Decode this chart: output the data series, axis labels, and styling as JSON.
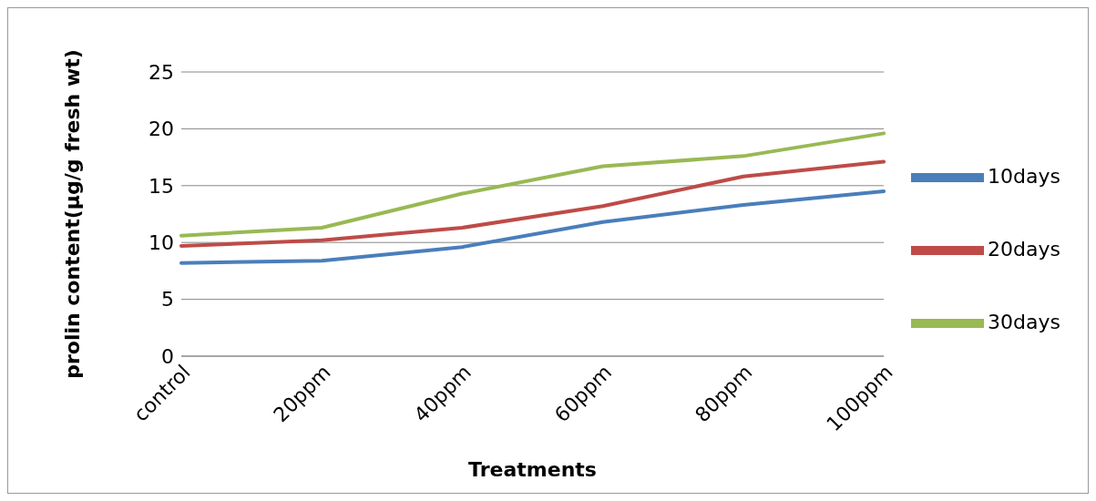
{
  "chart_data": {
    "type": "line",
    "xlabel": "Treatments",
    "ylabel": "prolin content(µg/g fresh wt)",
    "categories": [
      "control",
      "20ppm",
      "40ppm",
      "60ppm",
      "80ppm",
      "100ppm"
    ],
    "series": [
      {
        "name": "10days",
        "color": "#4a7ebb",
        "values": [
          8.2,
          8.4,
          9.6,
          11.8,
          13.3,
          14.5
        ]
      },
      {
        "name": "20days",
        "color": "#be4b48",
        "values": [
          9.7,
          10.2,
          11.3,
          13.2,
          15.8,
          17.1
        ]
      },
      {
        "name": "30days",
        "color": "#98b954",
        "values": [
          10.6,
          11.3,
          14.3,
          16.7,
          17.6,
          19.6
        ]
      }
    ],
    "ylim": [
      0,
      25
    ],
    "yticks": [
      0,
      5,
      10,
      15,
      20,
      25
    ],
    "grid": "y",
    "legend": "right",
    "marker": "none",
    "line_style": "solid"
  }
}
